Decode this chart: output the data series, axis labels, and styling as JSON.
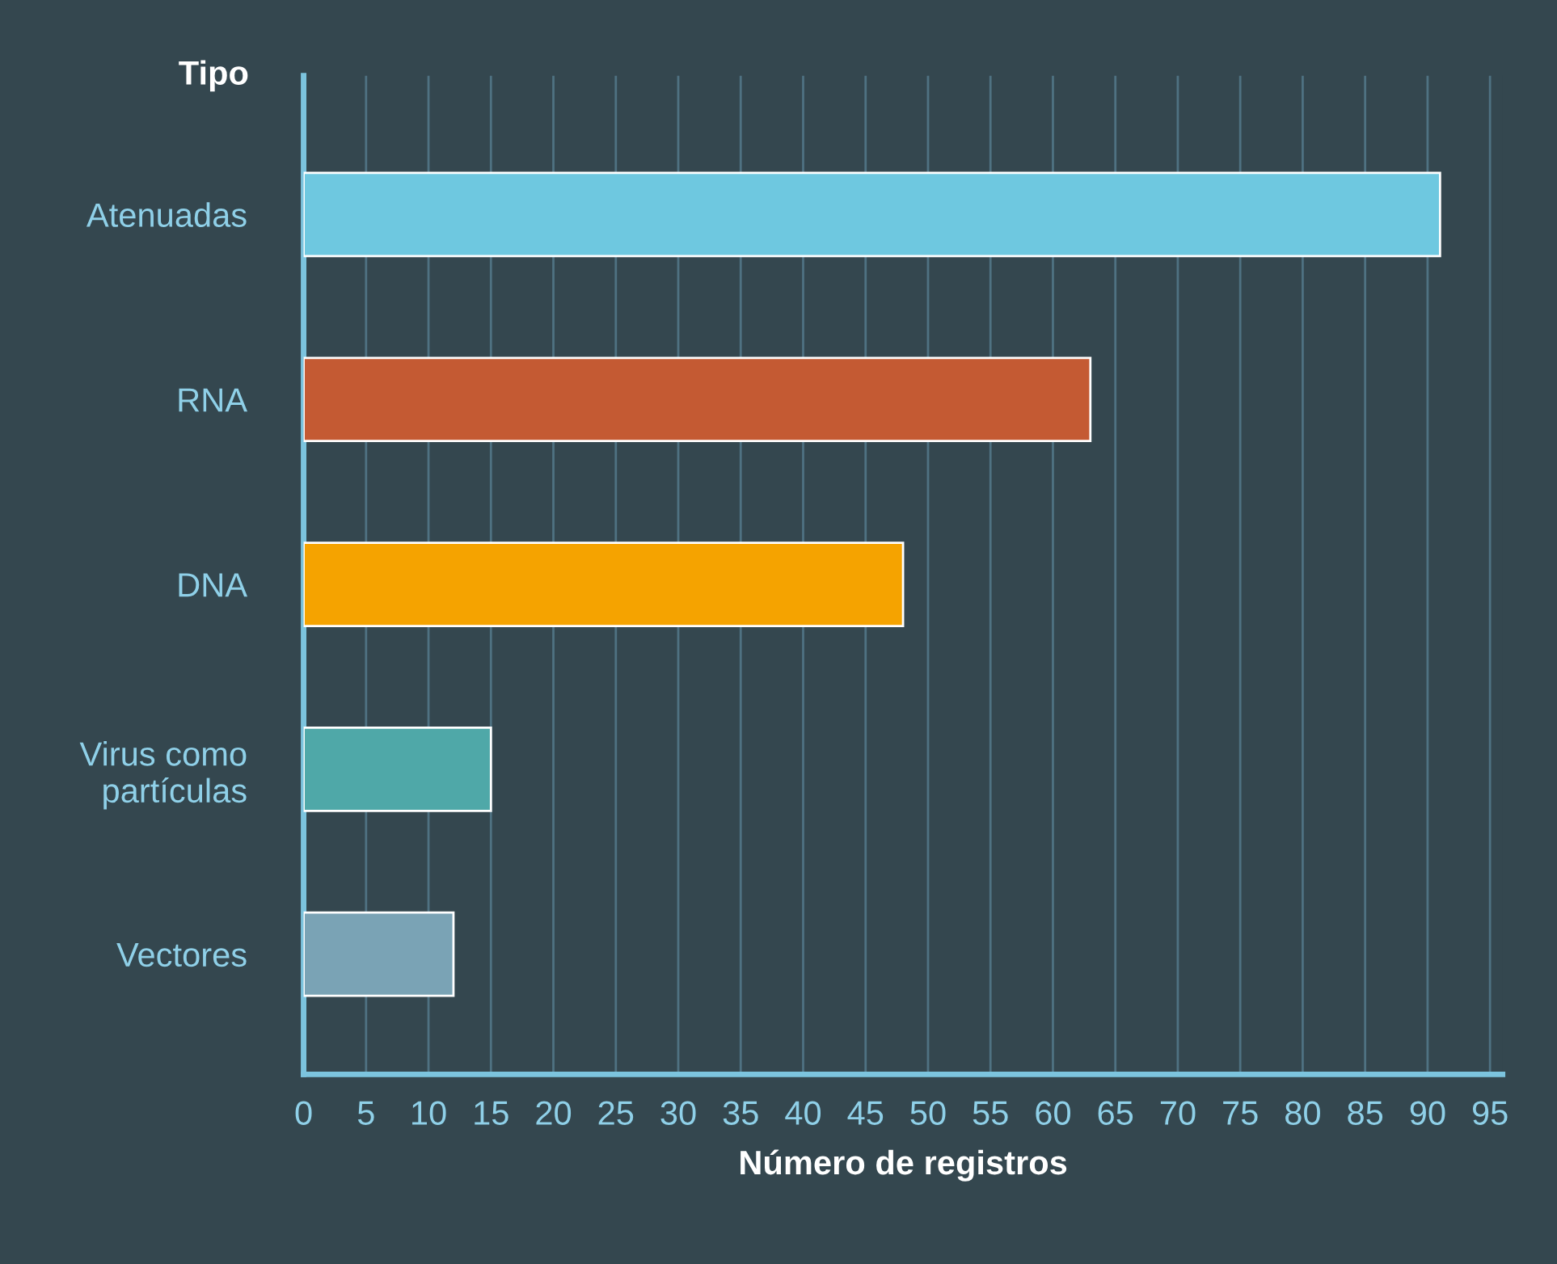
{
  "chart_data": {
    "type": "bar",
    "orientation": "horizontal",
    "ylabel": "Tipo",
    "xlabel": "Número de registros",
    "categories": [
      "Atenuadas",
      "RNA",
      "DNA",
      "Virus como\npartículas",
      "Vectores"
    ],
    "values": [
      91,
      63,
      48,
      15,
      12
    ],
    "colors": [
      "#6ec8e0",
      "#c45a33",
      "#f5a300",
      "#4fa8a8",
      "#7aa3b5"
    ],
    "xlim": [
      0,
      96
    ],
    "xticks": [
      0,
      5,
      10,
      15,
      20,
      25,
      30,
      35,
      40,
      45,
      50,
      55,
      60,
      65,
      70,
      75,
      80,
      85,
      90,
      95
    ],
    "grid": "x",
    "legend": false
  }
}
